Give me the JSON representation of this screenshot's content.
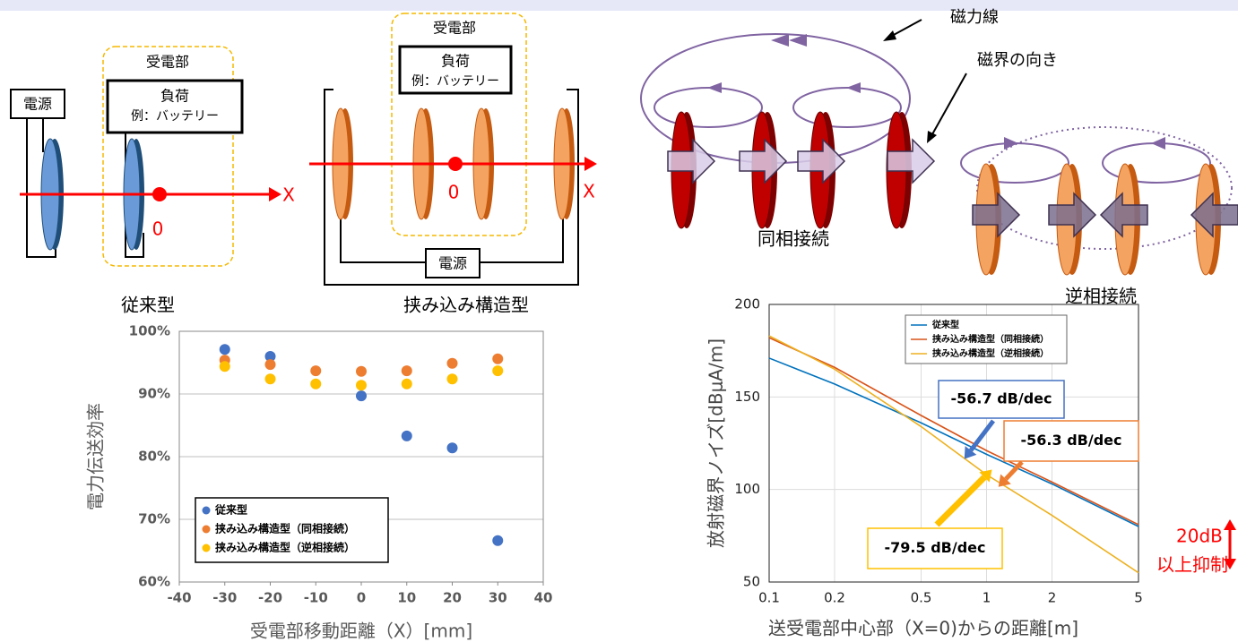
{
  "diagram": {
    "conventional": {
      "power": "電源",
      "receiver": "受電部",
      "load": "負荷",
      "load_example": "例：バッテリー",
      "origin": "0",
      "axis": "X",
      "caption": "従来型"
    },
    "sandwich": {
      "power": "電源",
      "receiver": "受電部",
      "load": "負荷",
      "load_example": "例：バッテリー",
      "origin": "0",
      "axis": "X",
      "caption": "挟み込み構造型"
    },
    "field": {
      "field_lines": "磁力線",
      "field_direction": "磁界の向き",
      "in_phase": "同相接続",
      "anti_phase": "逆相接続"
    }
  },
  "chart_data": [
    {
      "type": "scatter",
      "x_label": "受電部移動距離（X）[mm]",
      "y_label": "電力伝送効率",
      "xlim": [
        -40,
        40
      ],
      "xticks": [
        -40,
        -30,
        -20,
        -10,
        0,
        10,
        20,
        30,
        40
      ],
      "ylim": [
        60,
        100
      ],
      "yticks": [
        {
          "value": 60,
          "label": "60%"
        },
        {
          "value": 70,
          "label": "70%"
        },
        {
          "value": 80,
          "label": "80%"
        },
        {
          "value": 90,
          "label": "90%"
        },
        {
          "value": 100,
          "label": "100%"
        }
      ],
      "grid": true,
      "legend": "lower left",
      "series": [
        {
          "name": "従来型",
          "color": "#4472c4",
          "x": [
            -30,
            -20,
            0,
            10,
            20,
            30
          ],
          "values": [
            97.1,
            96,
            89.7,
            83.3,
            81.4,
            66.6
          ]
        },
        {
          "name": "挟み込み構造型（同相接続）",
          "color": "#ed7d31",
          "x": [
            -30,
            -20,
            -10,
            0,
            10,
            20,
            30
          ],
          "values": [
            95.4,
            94.7,
            93.7,
            93.6,
            93.7,
            94.9,
            95.6
          ]
        },
        {
          "name": "挟み込み構造型（逆相接続）",
          "color": "#ffc000",
          "x": [
            -30,
            -20,
            -10,
            0,
            10,
            20,
            30
          ],
          "values": [
            94.4,
            92.4,
            91.6,
            91.4,
            91.6,
            92.4,
            93.7
          ]
        }
      ]
    },
    {
      "type": "line",
      "x_label": "送受電部中心部（X=0)からの距離[m]",
      "y_label": "放射磁界ノイズ[dBμA/m]",
      "log_x": true,
      "x": [
        0.1,
        0.2,
        0.5,
        1,
        2,
        5
      ],
      "xlim": [
        0.1,
        5
      ],
      "xticks": [
        0.1,
        0.2,
        0.5,
        1,
        2,
        5
      ],
      "ylim": [
        50,
        200
      ],
      "yticks": [
        50,
        100,
        150,
        200
      ],
      "grid": true,
      "legend": "upper center",
      "series": [
        {
          "name": "従来型",
          "color": "#0072bd",
          "values": [
            171,
            157,
            136,
            119,
            103,
            80
          ]
        },
        {
          "name": "挟み込み構造型（同相接続）",
          "color": "#d95319",
          "values": [
            182,
            166,
            140,
            121,
            104,
            81
          ]
        },
        {
          "name": "挟み込み構造型（逆相接続）",
          "color": "#edb120",
          "values": [
            183,
            165,
            134,
            108,
            86,
            55
          ]
        }
      ],
      "annotations": [
        "-56.7 dB/dec",
        "-56.3 dB/dec",
        "-79.5 dB/dec",
        "20dB",
        "以上抑制"
      ]
    }
  ]
}
